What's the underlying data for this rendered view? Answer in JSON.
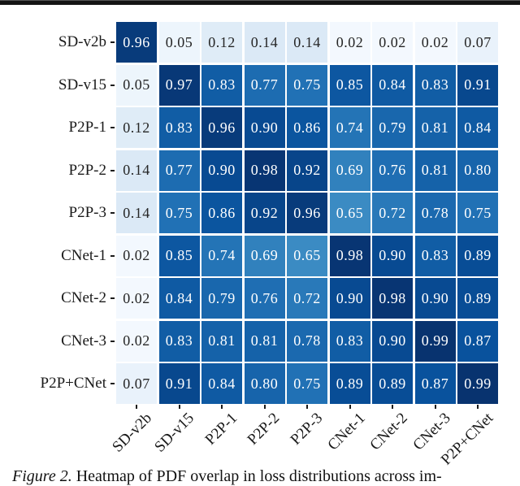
{
  "page": {
    "background": "#ffffff",
    "top_rule_color": "#141414"
  },
  "figure_caption": {
    "label": "Figure 2.",
    "text": "Heatmap of PDF overlap in loss distributions across im-"
  },
  "chart_data": {
    "type": "heatmap",
    "title": "",
    "x_categories": [
      "SD-v2b",
      "SD-v15",
      "P2P-1",
      "P2P-2",
      "P2P-3",
      "CNet-1",
      "CNet-2",
      "CNet-3",
      "P2P+CNet"
    ],
    "y_categories": [
      "SD-v2b",
      "SD-v15",
      "P2P-1",
      "P2P-2",
      "P2P-3",
      "CNet-1",
      "CNet-2",
      "CNet-3",
      "P2P+CNet"
    ],
    "matrix": [
      [
        0.96,
        0.05,
        0.12,
        0.14,
        0.14,
        0.02,
        0.02,
        0.02,
        0.07
      ],
      [
        0.05,
        0.97,
        0.83,
        0.77,
        0.75,
        0.85,
        0.84,
        0.83,
        0.91
      ],
      [
        0.12,
        0.83,
        0.96,
        0.9,
        0.86,
        0.74,
        0.79,
        0.81,
        0.84
      ],
      [
        0.14,
        0.77,
        0.9,
        0.98,
        0.92,
        0.69,
        0.76,
        0.81,
        0.8
      ],
      [
        0.14,
        0.75,
        0.86,
        0.92,
        0.96,
        0.65,
        0.72,
        0.78,
        0.75
      ],
      [
        0.02,
        0.85,
        0.74,
        0.69,
        0.65,
        0.98,
        0.9,
        0.83,
        0.89
      ],
      [
        0.02,
        0.84,
        0.79,
        0.76,
        0.72,
        0.9,
        0.98,
        0.9,
        0.89
      ],
      [
        0.02,
        0.83,
        0.81,
        0.81,
        0.78,
        0.83,
        0.9,
        0.99,
        0.87
      ],
      [
        0.07,
        0.91,
        0.84,
        0.8,
        0.75,
        0.89,
        0.89,
        0.87,
        0.99
      ]
    ],
    "value_range": [
      0,
      1
    ],
    "value_decimals": 2,
    "colormap": {
      "name": "Blues",
      "stops": [
        "#f7fbff",
        "#deebf7",
        "#c6dbef",
        "#9ecae1",
        "#6baed6",
        "#4292c6",
        "#2171b5",
        "#08519c",
        "#08306b"
      ]
    },
    "annotation_color_on_light": "#262626",
    "annotation_color_on_dark": "#ffffff",
    "tick_color": "#1a1a1a",
    "grid_gap_color": "#ffffff",
    "legend": "none",
    "x_label_rotation_deg": 45
  }
}
